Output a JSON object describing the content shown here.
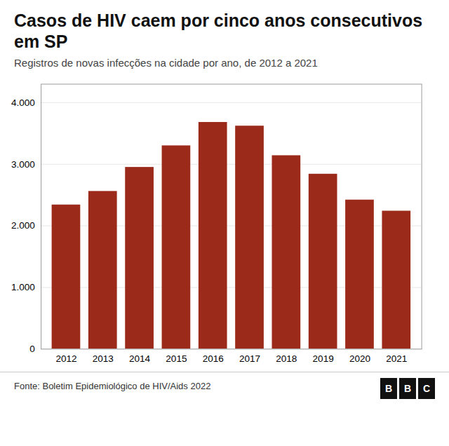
{
  "chart_data": {
    "type": "bar",
    "title": "Casos de HIV caem por cinco anos consecutivos em SP",
    "subtitle": "Registros de novas infecções na cidade por ano, de 2012 a 2021",
    "categories": [
      "2012",
      "2013",
      "2014",
      "2015",
      "2016",
      "2017",
      "2018",
      "2019",
      "2020",
      "2021"
    ],
    "values": [
      2340,
      2560,
      2950,
      3300,
      3680,
      3620,
      3140,
      2840,
      2420,
      2240
    ],
    "color": "#9B2A1A",
    "ylim": [
      0,
      4300
    ],
    "yticks": [
      0,
      {
        "value": 1000,
        "label": "1.000"
      },
      {
        "value": 2000,
        "label": "2.000"
      },
      {
        "value": 3000,
        "label": "3.000"
      },
      {
        "value": 4000,
        "label": "4.000"
      }
    ],
    "grid": true,
    "annotations": [
      "Fonte: Boletim Epidemiológico de HIV/Aids 2022",
      "BBC"
    ]
  }
}
